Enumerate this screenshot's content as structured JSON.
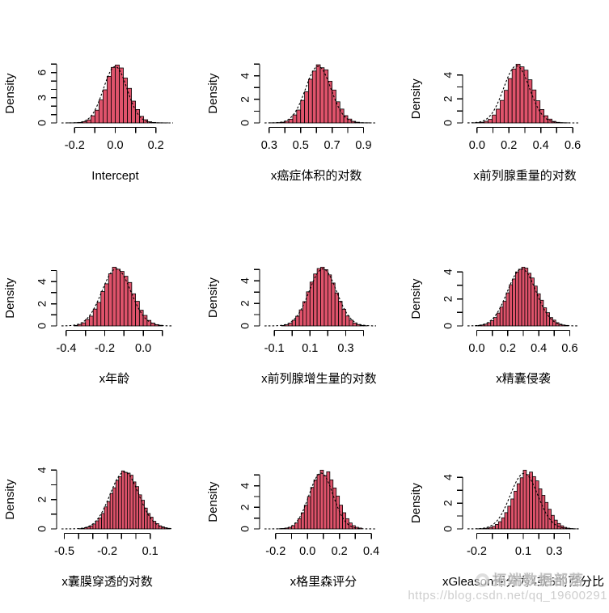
{
  "watermark": {
    "brand": "拓端数据部落",
    "url": "https://blog.csdn.net/qq_19600291"
  },
  "chart_data": [
    {
      "type": "bar",
      "subtype": "histogram",
      "title": "Intercept",
      "xlabel": "Intercept",
      "ylabel": "Density",
      "bar_color": "#DF536B",
      "xusr": [
        -0.265,
        0.285
      ],
      "x_ticks": [
        -0.2,
        -0.1,
        0.0,
        0.1,
        0.2
      ],
      "x_tick_labels": [
        {
          "v": -0.2,
          "t": "-0.2"
        },
        {
          "v": 0.0,
          "t": "0.0"
        },
        {
          "v": 0.2,
          "t": "0.2"
        }
      ],
      "y_tick_max": 7,
      "y_tick_labels": [
        0,
        3,
        6
      ],
      "bins": {
        "start": -0.24,
        "width": 0.02,
        "densities": [
          0.01,
          0.01,
          0.03,
          0.06,
          0.16,
          0.36,
          0.85,
          1.52,
          2.74,
          3.95,
          5.55,
          6.62,
          6.9,
          6.55,
          5.35,
          4.12,
          2.6,
          1.6,
          0.78,
          0.38,
          0.14,
          0.06,
          0.02,
          0.01,
          0.01
        ]
      },
      "curve": {
        "mean": 0.0,
        "sd": 0.058,
        "peak": 6.72,
        "style": "dashed"
      }
    },
    {
      "type": "bar",
      "subtype": "histogram",
      "title": "x癌症体积的对数",
      "xlabel": "x癌症体积的对数",
      "ylabel": "Density",
      "bar_color": "#DF536B",
      "xusr": [
        0.27,
        0.98
      ],
      "x_ticks": [
        0.3,
        0.4,
        0.5,
        0.6,
        0.7,
        0.8,
        0.9
      ],
      "x_tick_labels": [
        {
          "v": 0.3,
          "t": "0.3"
        },
        {
          "v": 0.5,
          "t": "0.5"
        },
        {
          "v": 0.7,
          "t": "0.7"
        },
        {
          "v": 0.9,
          "t": "0.9"
        }
      ],
      "y_tick_max": 5,
      "y_tick_labels": [
        0,
        2,
        4
      ],
      "bins": {
        "start": 0.3,
        "width": 0.025,
        "densities": [
          0.01,
          0.01,
          0.03,
          0.06,
          0.15,
          0.32,
          0.68,
          1.1,
          1.92,
          2.66,
          3.72,
          4.42,
          4.95,
          4.7,
          4.52,
          3.55,
          2.8,
          1.8,
          1.18,
          0.62,
          0.33,
          0.14,
          0.06,
          0.02,
          0.01,
          0.01
        ]
      },
      "curve": {
        "mean": 0.612,
        "sd": 0.0805,
        "peak": 4.82,
        "style": "dashed"
      }
    },
    {
      "type": "bar",
      "subtype": "histogram",
      "title": "x前列腺重量的对数",
      "xlabel": "x前列腺重量的对数",
      "ylabel": "Density",
      "bar_color": "#DF536B",
      "xusr": [
        -0.06,
        0.64
      ],
      "x_ticks": [
        0.0,
        0.1,
        0.2,
        0.3,
        0.4,
        0.5,
        0.6
      ],
      "x_tick_labels": [
        {
          "v": 0.0,
          "t": "0.0"
        },
        {
          "v": 0.2,
          "t": "0.2"
        },
        {
          "v": 0.4,
          "t": "0.4"
        },
        {
          "v": 0.6,
          "t": "0.6"
        }
      ],
      "y_tick_max": 4,
      "y_tick_labels": [
        0,
        2,
        4
      ],
      "bins": {
        "start": -0.03,
        "width": 0.025,
        "densities": [
          0.01,
          0.03,
          0.06,
          0.14,
          0.3,
          0.66,
          1.15,
          1.88,
          2.72,
          3.7,
          4.5,
          4.9,
          4.68,
          4.4,
          3.6,
          2.75,
          1.85,
          1.12,
          0.6,
          0.32,
          0.13,
          0.05,
          0.02,
          0.01
        ]
      },
      "curve": {
        "mean": 0.248,
        "sd": 0.0815,
        "peak": 4.76,
        "style": "dashed"
      }
    },
    {
      "type": "bar",
      "subtype": "histogram",
      "title": "x年龄",
      "xlabel": "x年龄",
      "ylabel": "Density",
      "bar_color": "#DF536B",
      "xusr": [
        -0.425,
        0.155
      ],
      "x_ticks": [
        -0.4,
        -0.3,
        -0.2,
        -0.1,
        0.0,
        0.1
      ],
      "x_tick_labels": [
        {
          "v": -0.4,
          "t": "-0.4"
        },
        {
          "v": -0.2,
          "t": "-0.2"
        },
        {
          "v": 0.0,
          "t": "0.0"
        }
      ],
      "y_tick_max": 5,
      "y_tick_labels": [
        0,
        2,
        4
      ],
      "bins": {
        "start": -0.36,
        "width": 0.02,
        "densities": [
          0.05,
          0.13,
          0.28,
          0.58,
          0.88,
          1.52,
          2.12,
          3.1,
          3.8,
          4.7,
          5.3,
          5.12,
          4.92,
          4.48,
          3.92,
          2.9,
          2.22,
          1.42,
          0.95,
          0.5,
          0.26,
          0.12,
          0.06
        ]
      },
      "curve": {
        "mean": -0.14,
        "sd": 0.075,
        "peak": 5.15,
        "style": "dashed"
      }
    },
    {
      "type": "bar",
      "subtype": "histogram",
      "title": "x前列腺增生量的对数",
      "xlabel": "x前列腺增生量的对数",
      "ylabel": "Density",
      "bar_color": "#DF536B",
      "xusr": [
        -0.155,
        0.47
      ],
      "x_ticks": [
        -0.1,
        0.0,
        0.1,
        0.2,
        0.3,
        0.4
      ],
      "x_tick_labels": [
        {
          "v": -0.1,
          "t": "-0.1"
        },
        {
          "v": 0.1,
          "t": "0.1"
        },
        {
          "v": 0.3,
          "t": "0.3"
        }
      ],
      "y_tick_max": 5,
      "y_tick_labels": [
        0,
        2,
        4
      ],
      "bins": {
        "start": -0.06,
        "width": 0.02,
        "densities": [
          0.04,
          0.1,
          0.24,
          0.5,
          0.86,
          1.42,
          2.15,
          3.02,
          3.88,
          4.6,
          5.08,
          5.2,
          4.98,
          4.52,
          3.8,
          2.92,
          2.18,
          1.48,
          0.88,
          0.52,
          0.26,
          0.12,
          0.05,
          0.02
        ]
      },
      "curve": {
        "mean": 0.172,
        "sd": 0.077,
        "peak": 5.05,
        "style": "dashed"
      }
    },
    {
      "type": "bar",
      "subtype": "histogram",
      "title": "x精囊侵袭",
      "xlabel": "x精囊侵袭",
      "ylabel": "Density",
      "bar_color": "#DF536B",
      "xusr": [
        -0.06,
        0.66
      ],
      "x_ticks": [
        0.0,
        0.1,
        0.2,
        0.3,
        0.4,
        0.5,
        0.6
      ],
      "x_tick_labels": [
        {
          "v": 0.0,
          "t": "0.0"
        },
        {
          "v": 0.2,
          "t": "0.2"
        },
        {
          "v": 0.4,
          "t": "0.4"
        },
        {
          "v": 0.6,
          "t": "0.6"
        }
      ],
      "y_tick_max": 4,
      "y_tick_labels": [
        0,
        2,
        4
      ],
      "bins": {
        "start": -0.01,
        "width": 0.02,
        "densities": [
          0.02,
          0.04,
          0.07,
          0.13,
          0.24,
          0.4,
          0.62,
          0.95,
          1.4,
          1.82,
          2.45,
          3.05,
          3.48,
          4.0,
          4.2,
          4.35,
          4.28,
          3.9,
          3.55,
          2.95,
          2.38,
          1.9,
          1.34,
          0.98,
          0.62,
          0.43,
          0.24,
          0.13,
          0.07,
          0.04
        ]
      },
      "curve": {
        "mean": 0.29,
        "sd": 0.092,
        "peak": 4.22,
        "style": "dashed"
      }
    },
    {
      "type": "bar",
      "subtype": "histogram",
      "title": "x囊膜穿透的对数",
      "xlabel": "x囊膜穿透的对数",
      "ylabel": "Density",
      "bar_color": "#DF536B",
      "xusr": [
        -0.52,
        0.26
      ],
      "x_ticks": [
        -0.5,
        -0.4,
        -0.3,
        -0.2,
        -0.1,
        0.0,
        0.1
      ],
      "x_tick_labels": [
        {
          "v": -0.5,
          "t": "-0.5"
        },
        {
          "v": -0.2,
          "t": "-0.2"
        },
        {
          "v": 0.1,
          "t": "0.1"
        }
      ],
      "y_tick_max": 4,
      "y_tick_labels": [
        0,
        2,
        4
      ],
      "bins": {
        "start": -0.4,
        "width": 0.02,
        "densities": [
          0.02,
          0.04,
          0.08,
          0.13,
          0.21,
          0.34,
          0.55,
          0.75,
          1.05,
          1.5,
          1.86,
          2.42,
          2.8,
          3.3,
          3.55,
          3.95,
          3.85,
          3.8,
          3.66,
          3.2,
          2.88,
          2.32,
          1.95,
          1.42,
          1.05,
          0.8,
          0.52,
          0.36,
          0.21,
          0.14,
          0.08,
          0.04
        ]
      },
      "curve": {
        "mean": -0.08,
        "sd": 0.1,
        "peak": 3.88,
        "style": "dashed"
      }
    },
    {
      "type": "bar",
      "subtype": "histogram",
      "title": "x格里森评分",
      "xlabel": "x格里森评分",
      "ylabel": "Density",
      "bar_color": "#DF536B",
      "xusr": [
        -0.27,
        0.43
      ],
      "x_ticks": [
        -0.2,
        -0.1,
        0.0,
        0.1,
        0.2,
        0.3,
        0.4
      ],
      "x_tick_labels": [
        {
          "v": -0.2,
          "t": "-0.2"
        },
        {
          "v": 0.0,
          "t": "0.0"
        },
        {
          "v": 0.2,
          "t": "0.2"
        },
        {
          "v": 0.4,
          "t": "0.4"
        }
      ],
      "y_tick_max": 5,
      "y_tick_labels": [
        0,
        2,
        4
      ],
      "bins": {
        "start": -0.18,
        "width": 0.02,
        "densities": [
          0.02,
          0.04,
          0.08,
          0.15,
          0.3,
          0.55,
          0.95,
          1.5,
          2.2,
          3.0,
          3.85,
          4.55,
          5.05,
          5.45,
          4.95,
          5.3,
          4.55,
          3.8,
          3.05,
          2.2,
          1.5,
          0.95,
          0.55,
          0.3,
          0.15,
          0.08
        ]
      },
      "curve": {
        "mean": 0.085,
        "sd": 0.0755,
        "peak": 5.18,
        "style": "dashed"
      }
    },
    {
      "type": "bar",
      "subtype": "histogram",
      "title": "xGleason评分为4或5的百分比",
      "xlabel": "xGleason评分为4或5的百分比",
      "ylabel": "Density",
      "bar_color": "#DF536B",
      "xusr": [
        -0.26,
        0.46
      ],
      "x_ticks": [
        -0.2,
        -0.1,
        0.0,
        0.1,
        0.2,
        0.3,
        0.4
      ],
      "x_tick_labels": [
        {
          "v": -0.2,
          "t": "-0.2"
        },
        {
          "v": 0.1,
          "t": "0.1"
        },
        {
          "v": 0.3,
          "t": "0.3"
        }
      ],
      "y_tick_max": 4,
      "y_tick_labels": [
        0,
        2,
        4
      ],
      "bins": {
        "start": -0.2,
        "width": 0.02,
        "densities": [
          0.01,
          0.02,
          0.03,
          0.06,
          0.12,
          0.2,
          0.35,
          0.56,
          0.86,
          1.26,
          1.76,
          2.32,
          2.92,
          3.5,
          3.96,
          4.55,
          4.2,
          4.4,
          4.05,
          3.72,
          3.1,
          2.6,
          2.05,
          1.52,
          1.05,
          0.68,
          0.42,
          0.24,
          0.12,
          0.06,
          0.03,
          0.01
        ]
      },
      "curve": {
        "mean": 0.105,
        "sd": 0.089,
        "peak": 4.3,
        "style": "dashed"
      }
    }
  ]
}
